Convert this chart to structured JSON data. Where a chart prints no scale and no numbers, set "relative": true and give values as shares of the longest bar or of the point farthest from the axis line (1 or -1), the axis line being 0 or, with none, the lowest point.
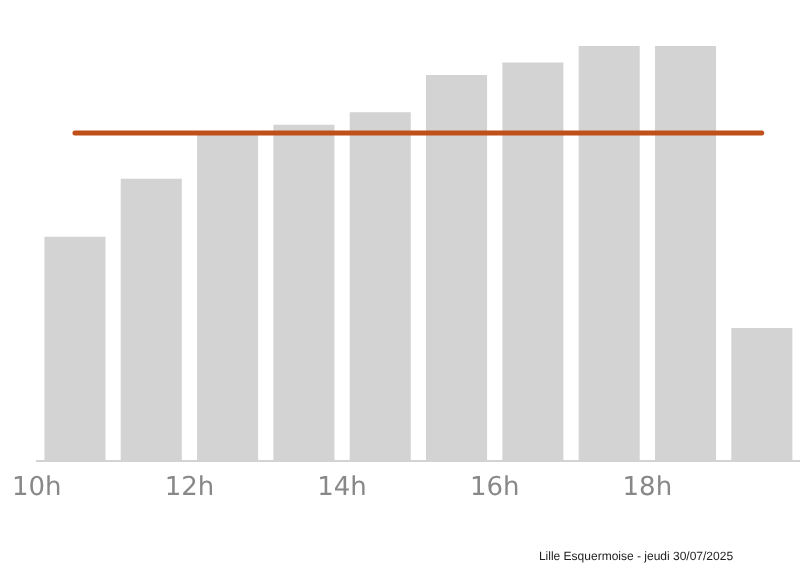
{
  "chart_data": {
    "type": "bar",
    "relative": true,
    "x": [
      10.5,
      11.5,
      12.5,
      13.5,
      14.5,
      15.5,
      16.5,
      17.5,
      18.5,
      19.5
    ],
    "xlim": [
      10,
      20
    ],
    "xticks": [
      {
        "value": 10,
        "label": "10h"
      },
      {
        "value": 12,
        "label": "12h"
      },
      {
        "value": 14,
        "label": "14h"
      },
      {
        "value": 16,
        "label": "16h"
      },
      {
        "value": 18,
        "label": "18h"
      }
    ],
    "values": [
      0.54,
      0.68,
      0.79,
      0.81,
      0.84,
      0.93,
      0.96,
      1.0,
      1.0,
      0.32
    ],
    "color": "#d3d3d3",
    "ref_lines": [
      {
        "axis": "y",
        "value": 0.79,
        "color": "#c0501a"
      }
    ],
    "annotations": [
      "Lille Esquermoise - jeudi 30/07/2025"
    ],
    "grid": false,
    "legend": false
  }
}
